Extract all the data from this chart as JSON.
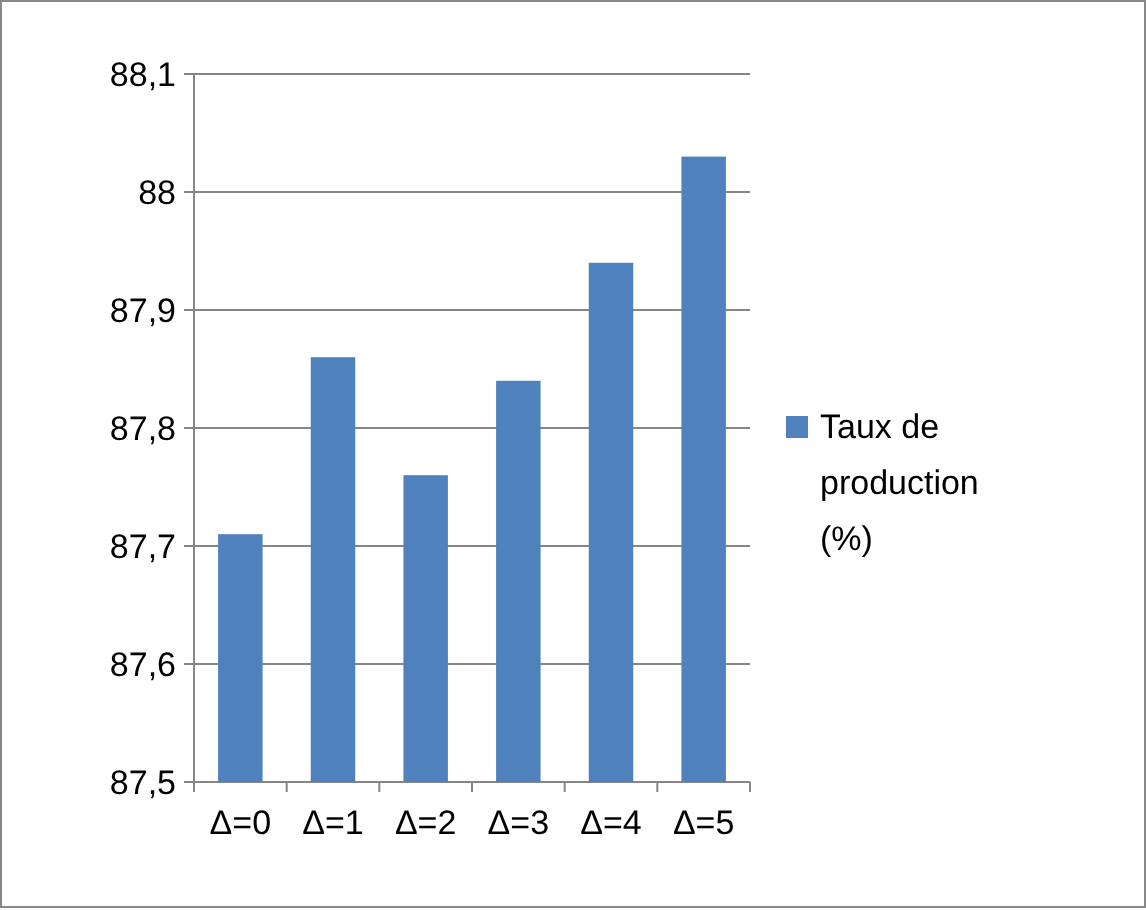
{
  "chart_data": {
    "type": "bar",
    "categories": [
      "Δ=0",
      "Δ=1",
      "Δ=2",
      "Δ=3",
      "Δ=4",
      "Δ=5"
    ],
    "series": [
      {
        "name": "Taux de production (%)",
        "color": "#4f81bd",
        "values": [
          87.71,
          87.86,
          87.76,
          87.84,
          87.94,
          88.03
        ]
      }
    ],
    "ylim": [
      87.5,
      88.1
    ],
    "yticks": [
      {
        "value": 87.5,
        "label": "87,5"
      },
      {
        "value": 87.6,
        "label": "87,6"
      },
      {
        "value": 87.7,
        "label": "87,7"
      },
      {
        "value": 87.8,
        "label": "87,8"
      },
      {
        "value": 87.9,
        "label": "87,9"
      },
      {
        "value": 88,
        "label": "88"
      },
      {
        "value": 88.1,
        "label": "88,1"
      }
    ],
    "grid": "y",
    "legend": "right"
  }
}
